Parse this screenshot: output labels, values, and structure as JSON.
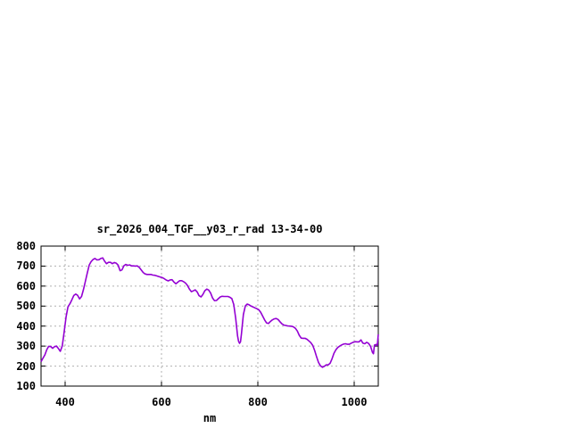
{
  "chart_data": {
    "type": "line",
    "title": "sr_2026_004_TGF__y03_r_rad 13-34-00",
    "xlabel": "nm",
    "ylabel": "",
    "xlim": [
      350,
      1050
    ],
    "ylim": [
      100,
      800
    ],
    "xticks": [
      400,
      600,
      800,
      1000
    ],
    "yticks": [
      100,
      200,
      300,
      400,
      500,
      600,
      700,
      800
    ],
    "grid": true,
    "legend_position": "none",
    "series": [
      {
        "color": "#9400d3",
        "points": [
          [
            350,
            222
          ],
          [
            354,
            240
          ],
          [
            358,
            256
          ],
          [
            362,
            283
          ],
          [
            366,
            299
          ],
          [
            370,
            298
          ],
          [
            374,
            289
          ],
          [
            378,
            297
          ],
          [
            382,
            300
          ],
          [
            386,
            288
          ],
          [
            390,
            274
          ],
          [
            394,
            301
          ],
          [
            398,
            370
          ],
          [
            402,
            447
          ],
          [
            406,
            497
          ],
          [
            410,
            512
          ],
          [
            414,
            532
          ],
          [
            418,
            553
          ],
          [
            422,
            560
          ],
          [
            426,
            554
          ],
          [
            430,
            536
          ],
          [
            434,
            548
          ],
          [
            438,
            582
          ],
          [
            442,
            624
          ],
          [
            446,
            665
          ],
          [
            450,
            705
          ],
          [
            454,
            723
          ],
          [
            458,
            733
          ],
          [
            462,
            738
          ],
          [
            466,
            731
          ],
          [
            470,
            732
          ],
          [
            474,
            738
          ],
          [
            478,
            741
          ],
          [
            482,
            724
          ],
          [
            486,
            712
          ],
          [
            490,
            719
          ],
          [
            494,
            719
          ],
          [
            498,
            712
          ],
          [
            502,
            718
          ],
          [
            506,
            715
          ],
          [
            510,
            705
          ],
          [
            514,
            677
          ],
          [
            518,
            681
          ],
          [
            522,
            702
          ],
          [
            526,
            708
          ],
          [
            530,
            704
          ],
          [
            534,
            706
          ],
          [
            538,
            701
          ],
          [
            542,
            701
          ],
          [
            546,
            700
          ],
          [
            550,
            701
          ],
          [
            554,
            693
          ],
          [
            558,
            681
          ],
          [
            562,
            668
          ],
          [
            566,
            661
          ],
          [
            570,
            658
          ],
          [
            574,
            658
          ],
          [
            578,
            658
          ],
          [
            582,
            655
          ],
          [
            586,
            654
          ],
          [
            590,
            651
          ],
          [
            594,
            648
          ],
          [
            598,
            645
          ],
          [
            602,
            642
          ],
          [
            606,
            637
          ],
          [
            610,
            630
          ],
          [
            614,
            626
          ],
          [
            618,
            631
          ],
          [
            622,
            632
          ],
          [
            626,
            620
          ],
          [
            630,
            612
          ],
          [
            634,
            620
          ],
          [
            638,
            627
          ],
          [
            642,
            627
          ],
          [
            646,
            622
          ],
          [
            650,
            615
          ],
          [
            654,
            603
          ],
          [
            658,
            585
          ],
          [
            662,
            572
          ],
          [
            666,
            576
          ],
          [
            670,
            581
          ],
          [
            674,
            571
          ],
          [
            678,
            552
          ],
          [
            682,
            546
          ],
          [
            686,
            558
          ],
          [
            690,
            577
          ],
          [
            694,
            585
          ],
          [
            698,
            580
          ],
          [
            702,
            565
          ],
          [
            706,
            541
          ],
          [
            710,
            527
          ],
          [
            714,
            528
          ],
          [
            718,
            537
          ],
          [
            722,
            546
          ],
          [
            726,
            549
          ],
          [
            730,
            548
          ],
          [
            734,
            548
          ],
          [
            738,
            548
          ],
          [
            742,
            544
          ],
          [
            746,
            538
          ],
          [
            750,
            508
          ],
          [
            754,
            438
          ],
          [
            758,
            350
          ],
          [
            760,
            324
          ],
          [
            762,
            314
          ],
          [
            764,
            322
          ],
          [
            766,
            360
          ],
          [
            768,
            410
          ],
          [
            770,
            458
          ],
          [
            774,
            501
          ],
          [
            778,
            510
          ],
          [
            782,
            506
          ],
          [
            786,
            500
          ],
          [
            790,
            496
          ],
          [
            794,
            491
          ],
          [
            798,
            487
          ],
          [
            802,
            481
          ],
          [
            806,
            469
          ],
          [
            810,
            450
          ],
          [
            814,
            431
          ],
          [
            818,
            416
          ],
          [
            822,
            413
          ],
          [
            826,
            423
          ],
          [
            830,
            431
          ],
          [
            834,
            436
          ],
          [
            838,
            438
          ],
          [
            842,
            433
          ],
          [
            846,
            422
          ],
          [
            850,
            411
          ],
          [
            854,
            405
          ],
          [
            858,
            403
          ],
          [
            862,
            401
          ],
          [
            866,
            400
          ],
          [
            870,
            399
          ],
          [
            874,
            396
          ],
          [
            878,
            389
          ],
          [
            882,
            375
          ],
          [
            886,
            354
          ],
          [
            890,
            340
          ],
          [
            894,
            339
          ],
          [
            898,
            339
          ],
          [
            902,
            334
          ],
          [
            906,
            326
          ],
          [
            910,
            317
          ],
          [
            914,
            303
          ],
          [
            918,
            278
          ],
          [
            922,
            246
          ],
          [
            926,
            218
          ],
          [
            930,
            201
          ],
          [
            934,
            194
          ],
          [
            938,
            199
          ],
          [
            942,
            206
          ],
          [
            946,
            206
          ],
          [
            950,
            214
          ],
          [
            954,
            237
          ],
          [
            958,
            264
          ],
          [
            962,
            282
          ],
          [
            966,
            293
          ],
          [
            970,
            300
          ],
          [
            974,
            306
          ],
          [
            978,
            310
          ],
          [
            982,
            312
          ],
          [
            986,
            309
          ],
          [
            990,
            309
          ],
          [
            994,
            315
          ],
          [
            998,
            319
          ],
          [
            1002,
            322
          ],
          [
            1006,
            321
          ],
          [
            1010,
            321
          ],
          [
            1014,
            331
          ],
          [
            1018,
            315
          ],
          [
            1022,
            312
          ],
          [
            1026,
            319
          ],
          [
            1030,
            313
          ],
          [
            1034,
            298
          ],
          [
            1038,
            268
          ],
          [
            1040,
            262
          ],
          [
            1042,
            305
          ],
          [
            1046,
            308
          ],
          [
            1048,
            303
          ],
          [
            1050,
            358
          ]
        ]
      }
    ]
  },
  "style": {
    "line_color": "#9400d3",
    "grid_color": "#b0b0b0",
    "border_color": "#000000",
    "text_color": "#000000",
    "background": "#ffffff"
  }
}
